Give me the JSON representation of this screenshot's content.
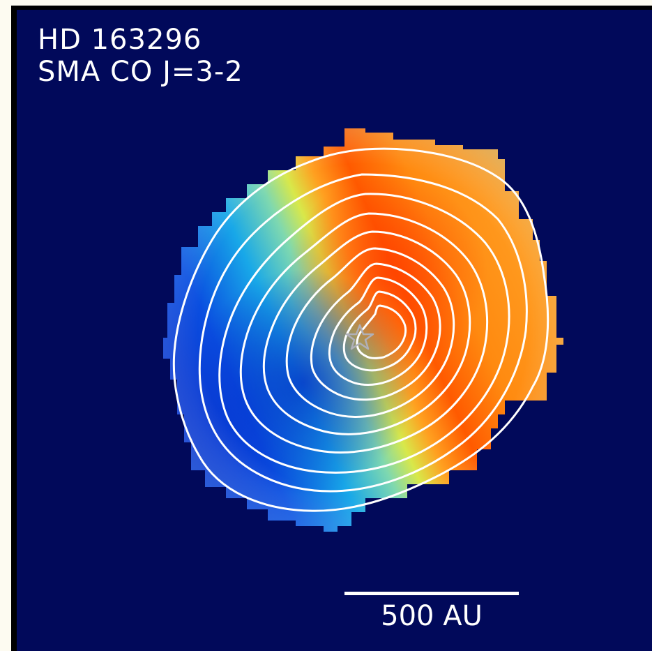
{
  "image": {
    "title_line1": "HD 163296",
    "title_line2": "SMA CO J=3-2",
    "scale_label": "500 AU",
    "colors": {
      "background": "#01095a",
      "outer_frame": "#fdfbf1",
      "contours": "#ffffff",
      "redshifted": "#ff3c00",
      "blueshifted": "#0a3cd8"
    },
    "marker_icon": "star-icon"
  }
}
